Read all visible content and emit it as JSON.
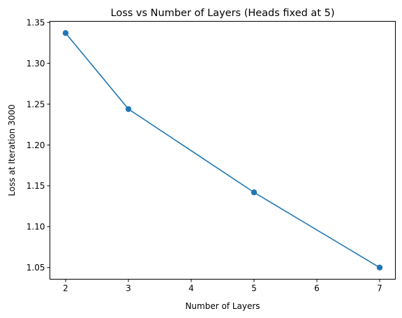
{
  "chart_data": {
    "type": "line",
    "title": "Loss vs Number of Layers (Heads fixed at 5)",
    "xlabel": "Number of Layers",
    "ylabel": "Loss at Iteration 3000",
    "x": [
      2,
      3,
      5,
      7
    ],
    "series": [
      {
        "values": [
          1.337,
          1.244,
          1.142,
          1.05
        ]
      }
    ],
    "xlim": [
      1.75,
      7.25
    ],
    "ylim": [
      1.0357,
      1.3514
    ],
    "xticks": [
      2,
      3,
      4,
      5,
      6,
      7
    ],
    "yticks": [
      1.05,
      1.1,
      1.15,
      1.2,
      1.25,
      1.3,
      1.35
    ],
    "xtick_labels": [
      "2",
      "3",
      "4",
      "5",
      "6",
      "7"
    ],
    "ytick_labels": [
      "1.05",
      "1.10",
      "1.15",
      "1.20",
      "1.25",
      "1.30",
      "1.35"
    ],
    "marker": "circle",
    "grid": false,
    "colors": {
      "line": "#1f77b4",
      "marker": "#1f77b4"
    }
  }
}
